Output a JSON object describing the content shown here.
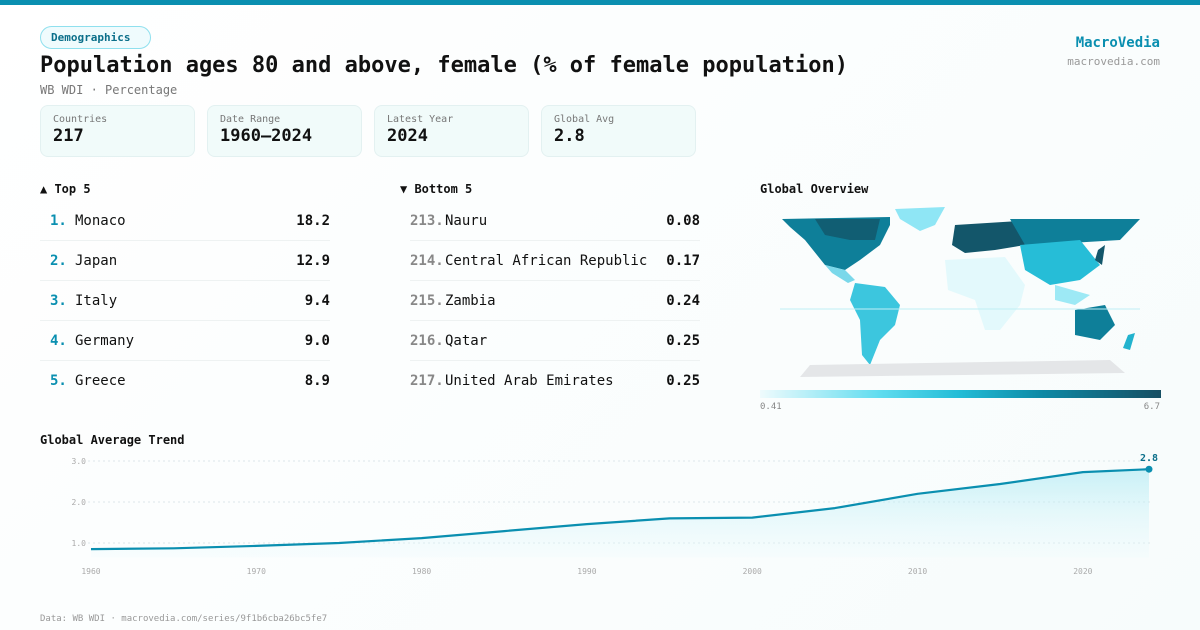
{
  "header": {
    "tag": "Demographics",
    "title": "Population ages 80 and above, female (% of female population)",
    "subtitle": "WB WDI · Percentage",
    "brand": "MacroVedia",
    "brand_url": "macrovedia.com"
  },
  "stats": [
    {
      "label": "Countries",
      "value": "217"
    },
    {
      "label": "Date Range",
      "value": "1960–2024"
    },
    {
      "label": "Latest Year",
      "value": "2024"
    },
    {
      "label": "Global Avg",
      "value": "2.8"
    }
  ],
  "top5": {
    "title": "▲ Top 5",
    "items": [
      {
        "rank": "1.",
        "name": "Monaco",
        "value": "18.2"
      },
      {
        "rank": "2.",
        "name": "Japan",
        "value": "12.9"
      },
      {
        "rank": "3.",
        "name": "Italy",
        "value": "9.4"
      },
      {
        "rank": "4.",
        "name": "Germany",
        "value": "9.0"
      },
      {
        "rank": "5.",
        "name": "Greece",
        "value": "8.9"
      }
    ]
  },
  "bottom5": {
    "title": "▼ Bottom 5",
    "items": [
      {
        "rank": "213.",
        "name": "Nauru",
        "value": "0.08"
      },
      {
        "rank": "214.",
        "name": "Central African Republic",
        "value": "0.17"
      },
      {
        "rank": "215.",
        "name": "Zambia",
        "value": "0.24"
      },
      {
        "rank": "216.",
        "name": "Qatar",
        "value": "0.25"
      },
      {
        "rank": "217.",
        "name": "United Arab Emirates",
        "value": "0.25"
      }
    ]
  },
  "map": {
    "title": "Global Overview",
    "min_label": "0.41",
    "max_label": "6.7"
  },
  "chart_data": {
    "type": "area",
    "title": "Global Average Trend",
    "x": [
      1960,
      1965,
      1970,
      1975,
      1980,
      1985,
      1990,
      1995,
      2000,
      2005,
      2010,
      2015,
      2020,
      2024
    ],
    "values": [
      0.85,
      0.87,
      0.93,
      1.0,
      1.12,
      1.29,
      1.46,
      1.6,
      1.62,
      1.85,
      2.2,
      2.44,
      2.73,
      2.8
    ],
    "ylim": [
      0.6,
      3.0
    ],
    "yticks": [
      "1.0",
      "2.0",
      "3.0"
    ],
    "xticks": [
      "1960",
      "1970",
      "1980",
      "1990",
      "2000",
      "2010",
      "2020"
    ],
    "end_label": "2.8",
    "grid": true,
    "color": "#0a8fb0"
  },
  "footer": "Data: WB WDI · macrovedia.com/series/9f1b6cba26bc5fe7"
}
